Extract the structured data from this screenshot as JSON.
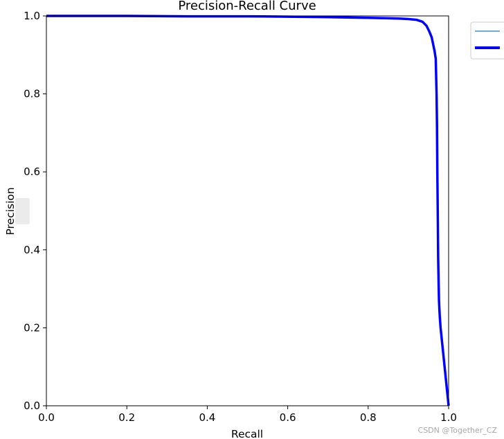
{
  "chart_data": {
    "type": "line",
    "title": "Precision-Recall Curve",
    "xlabel": "Recall",
    "ylabel": "Precision",
    "xlim": [
      0.0,
      1.0
    ],
    "ylim": [
      0.0,
      1.0
    ],
    "x_ticks": [
      "0.0",
      "0.2",
      "0.4",
      "0.6",
      "0.8",
      "1.0"
    ],
    "y_ticks": [
      "0.0",
      "0.2",
      "0.4",
      "0.6",
      "0.8",
      "1.0"
    ],
    "grid": false,
    "legend": {
      "placement": "top-right-outside",
      "entries": [
        {
          "label": "",
          "color": "#1f77b4",
          "style": "thin"
        },
        {
          "label": "",
          "color": "#0000ff",
          "style": "thick"
        }
      ]
    },
    "series": [
      {
        "color": "#0000ff",
        "x": [
          0.0,
          0.2,
          0.35,
          0.5,
          0.6,
          0.7,
          0.8,
          0.85,
          0.88,
          0.9,
          0.92,
          0.935,
          0.945,
          0.952,
          0.958,
          0.962,
          0.965,
          0.968,
          0.97,
          0.971,
          0.972,
          0.973,
          0.974,
          0.975,
          0.976,
          0.977,
          0.978,
          0.98,
          0.99,
          1.0
        ],
        "y": [
          1.0,
          1.0,
          0.999,
          0.999,
          0.998,
          0.997,
          0.995,
          0.994,
          0.993,
          0.992,
          0.99,
          0.985,
          0.975,
          0.96,
          0.945,
          0.925,
          0.91,
          0.89,
          0.8,
          0.72,
          0.6,
          0.5,
          0.38,
          0.32,
          0.27,
          0.25,
          0.23,
          0.2,
          0.1,
          0.0
        ]
      }
    ]
  },
  "watermark": "CSDN @Together_CZ"
}
